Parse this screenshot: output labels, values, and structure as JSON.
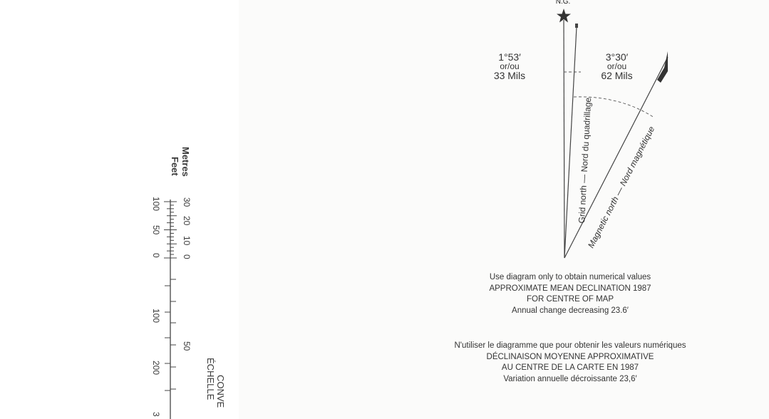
{
  "scale": {
    "units_metres": "Metres",
    "units_feet": "Feet",
    "metres_ticks": [
      "30",
      "20",
      "10",
      "0",
      "50"
    ],
    "feet_ticks": [
      "100",
      "50",
      "0",
      "100",
      "200",
      "3"
    ],
    "conversion_title_en": "CONVE",
    "conversion_title_fr": "ÉCHELLE"
  },
  "diagram": {
    "ng_label": "N.G.",
    "grid_angle": "1°53′",
    "grid_angle_or": "or/ou",
    "grid_mils": "33 Mils",
    "mag_angle": "3°30′",
    "mag_angle_or": "or/ou",
    "mag_mils": "62 Mils",
    "grid_line_label": "Grid north — Nord du quadrillage",
    "mag_line_label": "Magnetic north — Nord magnétique"
  },
  "caption_en": {
    "line1": "Use diagram only to obtain numerical values",
    "line2": "APPROXIMATE MEAN DECLINATION 1987",
    "line3": "FOR CENTRE OF MAP",
    "line4": "Annual change decreasing 23.6′"
  },
  "caption_fr": {
    "line1": "N'utiliser le diagramme que pour obtenir les valeurs numériques",
    "line2": "DÉCLINAISON MOYENNE APPROXIMATIVE",
    "line3": "AU CENTRE DE LA CARTE EN 1987",
    "line4": "Variation annuelle décroissante 23,6′"
  },
  "colors": {
    "ink": "#333333",
    "background": "#fbfbfa"
  }
}
